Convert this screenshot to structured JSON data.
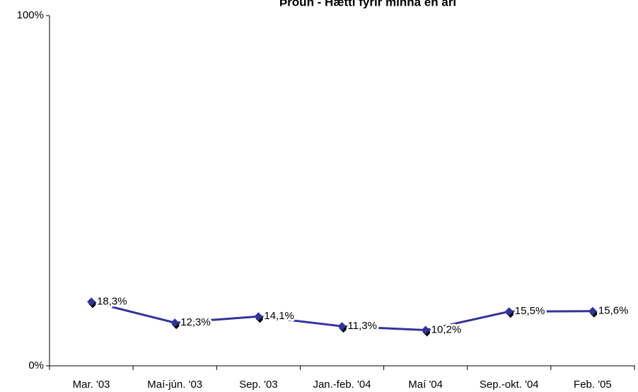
{
  "chart_data": {
    "type": "line",
    "title": "Þróun - Hætti fyrir minna en ári",
    "categories": [
      "Mar. '03",
      "Maí-jún. '03",
      "Sep. '03",
      "Jan.-feb. '04",
      "Maí '04",
      "Sep.-okt. '04",
      "Feb. '05"
    ],
    "series": [
      {
        "name": "Hætti fyrir minna en ári",
        "color": "#333399",
        "values": [
          18.3,
          12.3,
          14.1,
          11.3,
          10.2,
          15.5,
          15.6
        ],
        "value_labels": [
          "18,3%",
          "12,3%",
          "14,1%",
          "11,3%",
          "10,2%",
          "15,5%",
          "15,6%"
        ]
      }
    ],
    "ylim": [
      0,
      100
    ],
    "yticks": [
      {
        "value": 0,
        "label": "0%"
      },
      {
        "value": 100,
        "label": "100%"
      }
    ],
    "grid": false
  }
}
